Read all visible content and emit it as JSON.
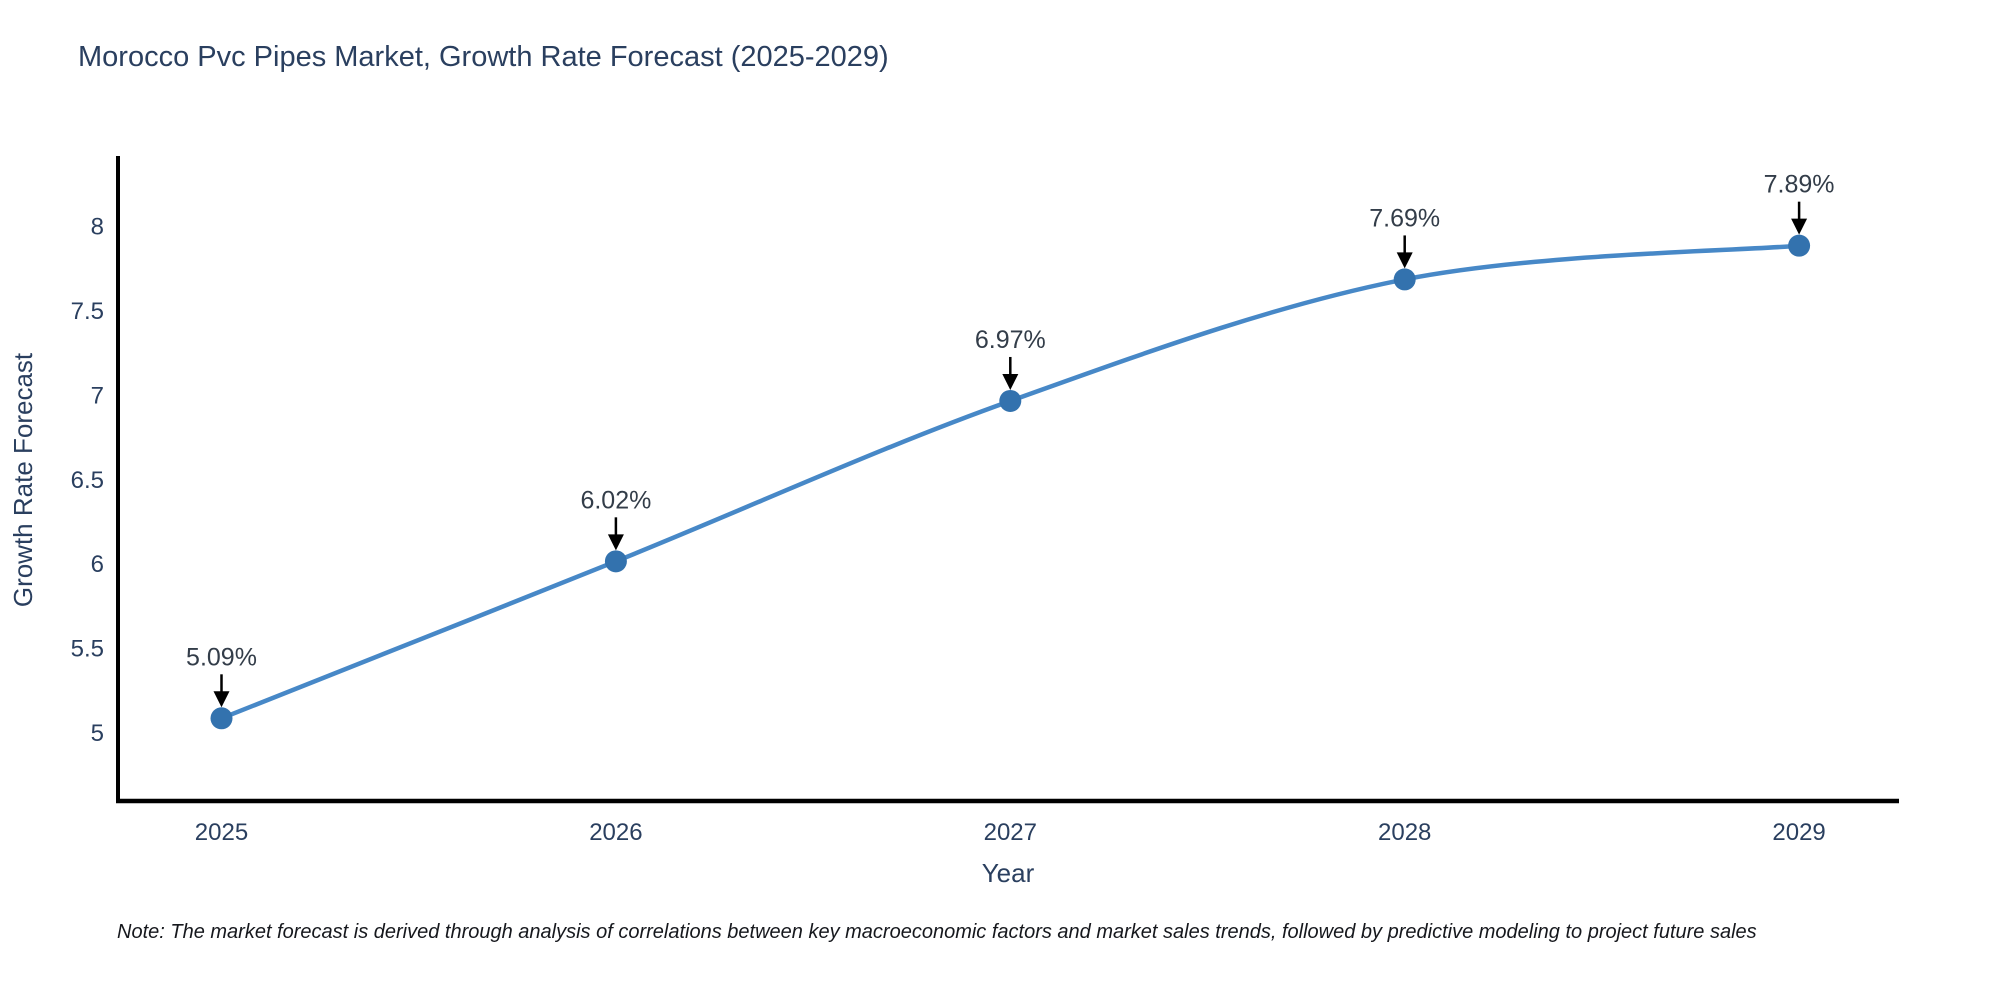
{
  "title": "Morocco Pvc Pipes Market, Growth Rate Forecast (2025-2029)",
  "note": "Note: The market forecast is derived through analysis of correlations between key macroeconomic factors and market sales trends, followed by predictive modeling to project future sales",
  "colors": {
    "title": "#2a3f5f",
    "tick": "#2a3f5f",
    "axis_title": "#2a3f5f",
    "annotation": "#333d49",
    "arrow": "#000000",
    "spine": "#000000",
    "line": "#4788c7",
    "marker": "#3372ae",
    "note": "#16181d",
    "background": "#ffffff"
  },
  "chart_data": {
    "type": "line",
    "title": "Morocco Pvc Pipes Market, Growth Rate Forecast (2025-2029)",
    "xlabel": "Year",
    "ylabel": "Growth Rate Forecast",
    "x": [
      2025,
      2026,
      2027,
      2028,
      2029
    ],
    "values": [
      5.09,
      6.02,
      6.97,
      7.69,
      7.89
    ],
    "point_labels": [
      "5.09%",
      "6.02%",
      "6.97%",
      "7.69%",
      "7.89%"
    ],
    "yticks": [
      5,
      5.5,
      6,
      6.5,
      7,
      7.5,
      8
    ],
    "ylim": [
      4.6,
      8.42
    ],
    "grid": false,
    "legend": false,
    "marker_style": "circle",
    "annotation_style": "label-above-with-down-arrow",
    "line_shape": "smooth"
  }
}
